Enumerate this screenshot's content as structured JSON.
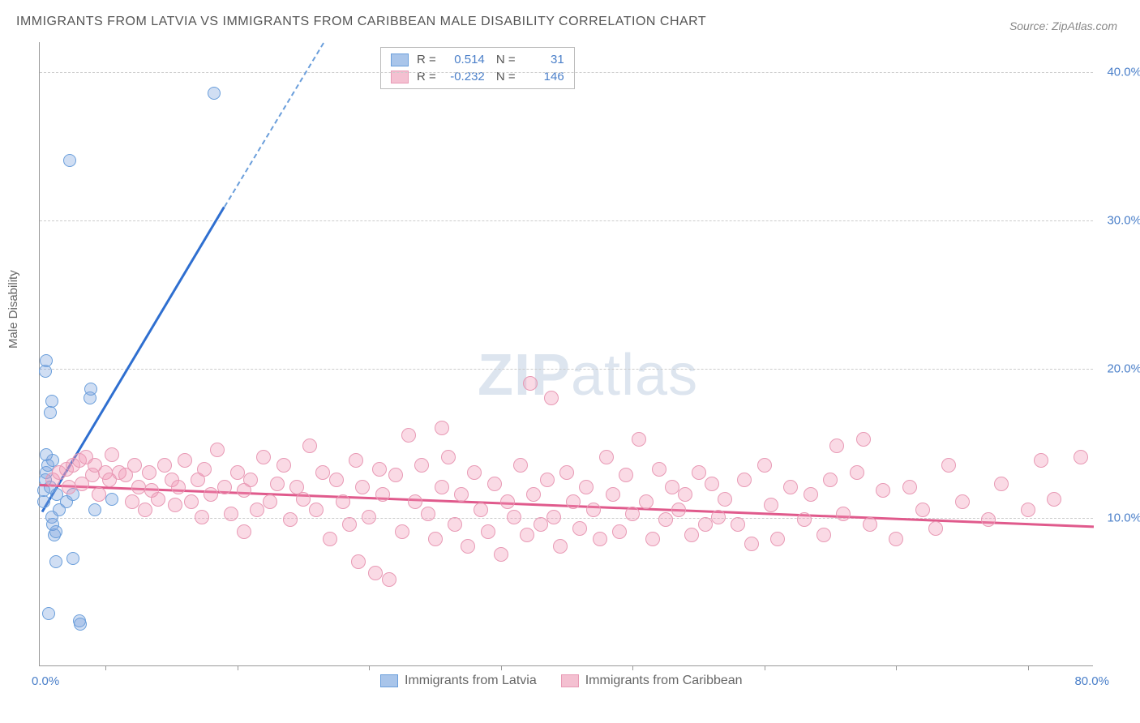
{
  "title": "IMMIGRANTS FROM LATVIA VS IMMIGRANTS FROM CARIBBEAN MALE DISABILITY CORRELATION CHART",
  "source": "Source: ZipAtlas.com",
  "ylabel": "Male Disability",
  "watermark_bold": "ZIP",
  "watermark_rest": "atlas",
  "chart": {
    "type": "scatter",
    "background_color": "#ffffff",
    "grid_color": "#cccccc",
    "border_color": "#999999",
    "xlim": [
      0,
      80
    ],
    "ylim": [
      0,
      42
    ],
    "y_ticks": [
      {
        "v": 10,
        "label": "10.0%"
      },
      {
        "v": 20,
        "label": "20.0%"
      },
      {
        "v": 30,
        "label": "30.0%"
      },
      {
        "v": 40,
        "label": "40.0%"
      }
    ],
    "x_tick_left": "0.0%",
    "x_tick_right": "80.0%",
    "x_tick_marks": [
      5,
      15,
      25,
      35,
      45,
      55,
      65,
      75
    ],
    "series": [
      {
        "name": "Immigrants from Latvia",
        "color_fill": "rgba(120,160,220,0.35)",
        "color_stroke": "#6a9edb",
        "swatch_fill": "#a9c5ea",
        "swatch_border": "#6a9edb",
        "marker_radius": 8,
        "R": "0.514",
        "N": "31",
        "trend": {
          "x1": 0.2,
          "y1": 10.5,
          "x2": 14,
          "y2": 31,
          "color": "#2f6fd0",
          "width": 3
        },
        "trend_dash": {
          "x1": 14,
          "y1": 31,
          "x2": 21.5,
          "y2": 42,
          "color": "#6a9edb"
        },
        "points": [
          {
            "x": 0.3,
            "y": 11
          },
          {
            "x": 0.3,
            "y": 11.8
          },
          {
            "x": 0.4,
            "y": 12.5
          },
          {
            "x": 0.5,
            "y": 13
          },
          {
            "x": 0.6,
            "y": 13.5
          },
          {
            "x": 0.8,
            "y": 12
          },
          {
            "x": 0.9,
            "y": 10
          },
          {
            "x": 1.0,
            "y": 9.5
          },
          {
            "x": 1.1,
            "y": 8.8
          },
          {
            "x": 1.2,
            "y": 9.0
          },
          {
            "x": 1.3,
            "y": 11.5
          },
          {
            "x": 1.0,
            "y": 13.8
          },
          {
            "x": 0.5,
            "y": 14.2
          },
          {
            "x": 1.5,
            "y": 10.5
          },
          {
            "x": 2.0,
            "y": 11
          },
          {
            "x": 2.5,
            "y": 11.5
          },
          {
            "x": 0.8,
            "y": 17
          },
          {
            "x": 0.9,
            "y": 17.8
          },
          {
            "x": 0.4,
            "y": 19.8
          },
          {
            "x": 0.5,
            "y": 20.5
          },
          {
            "x": 3.8,
            "y": 18
          },
          {
            "x": 3.9,
            "y": 18.6
          },
          {
            "x": 4.2,
            "y": 10.5
          },
          {
            "x": 5.5,
            "y": 11.2
          },
          {
            "x": 1.2,
            "y": 7.0
          },
          {
            "x": 2.5,
            "y": 7.2
          },
          {
            "x": 0.7,
            "y": 3.5
          },
          {
            "x": 3.0,
            "y": 3.0
          },
          {
            "x": 3.1,
            "y": 2.8
          },
          {
            "x": 2.3,
            "y": 34.0
          },
          {
            "x": 13.2,
            "y": 38.5
          }
        ]
      },
      {
        "name": "Immigrants from Caribbean",
        "color_fill": "rgba(240,150,180,0.35)",
        "color_stroke": "#e89ab5",
        "swatch_fill": "#f4c0d1",
        "swatch_border": "#e89ab5",
        "marker_radius": 9,
        "R": "-0.232",
        "N": "146",
        "trend": {
          "x1": 0,
          "y1": 12.3,
          "x2": 80,
          "y2": 9.5,
          "color": "#e05a8c",
          "width": 2.5
        },
        "points": [
          {
            "x": 1,
            "y": 12.5
          },
          {
            "x": 1.5,
            "y": 13
          },
          {
            "x": 2,
            "y": 13.2
          },
          {
            "x": 2.2,
            "y": 12
          },
          {
            "x": 2.5,
            "y": 13.5
          },
          {
            "x": 3,
            "y": 13.8
          },
          {
            "x": 3.2,
            "y": 12.2
          },
          {
            "x": 3.5,
            "y": 14
          },
          {
            "x": 4,
            "y": 12.8
          },
          {
            "x": 4.2,
            "y": 13.5
          },
          {
            "x": 4.5,
            "y": 11.5
          },
          {
            "x": 5,
            "y": 13
          },
          {
            "x": 5.3,
            "y": 12.5
          },
          {
            "x": 5.5,
            "y": 14.2
          },
          {
            "x": 6,
            "y": 13
          },
          {
            "x": 6.5,
            "y": 12.8
          },
          {
            "x": 7,
            "y": 11
          },
          {
            "x": 7.2,
            "y": 13.5
          },
          {
            "x": 7.5,
            "y": 12
          },
          {
            "x": 8,
            "y": 10.5
          },
          {
            "x": 8.3,
            "y": 13
          },
          {
            "x": 8.5,
            "y": 11.8
          },
          {
            "x": 9,
            "y": 11.2
          },
          {
            "x": 9.5,
            "y": 13.5
          },
          {
            "x": 10,
            "y": 12.5
          },
          {
            "x": 10.3,
            "y": 10.8
          },
          {
            "x": 10.5,
            "y": 12
          },
          {
            "x": 11,
            "y": 13.8
          },
          {
            "x": 11.5,
            "y": 11
          },
          {
            "x": 12,
            "y": 12.5
          },
          {
            "x": 12.3,
            "y": 10
          },
          {
            "x": 12.5,
            "y": 13.2
          },
          {
            "x": 13,
            "y": 11.5
          },
          {
            "x": 13.5,
            "y": 14.5
          },
          {
            "x": 14,
            "y": 12
          },
          {
            "x": 14.5,
            "y": 10.2
          },
          {
            "x": 15,
            "y": 13
          },
          {
            "x": 15.5,
            "y": 11.8
          },
          {
            "x": 16,
            "y": 12.5
          },
          {
            "x": 16.5,
            "y": 10.5
          },
          {
            "x": 17,
            "y": 14
          },
          {
            "x": 17.5,
            "y": 11
          },
          {
            "x": 18,
            "y": 12.2
          },
          {
            "x": 18.5,
            "y": 13.5
          },
          {
            "x": 19,
            "y": 9.8
          },
          {
            "x": 19.5,
            "y": 12
          },
          {
            "x": 20,
            "y": 11.2
          },
          {
            "x": 20.5,
            "y": 14.8
          },
          {
            "x": 21,
            "y": 10.5
          },
          {
            "x": 21.5,
            "y": 13
          },
          {
            "x": 22,
            "y": 8.5
          },
          {
            "x": 22.5,
            "y": 12.5
          },
          {
            "x": 23,
            "y": 11
          },
          {
            "x": 23.5,
            "y": 9.5
          },
          {
            "x": 24,
            "y": 13.8
          },
          {
            "x": 24.2,
            "y": 7
          },
          {
            "x": 24.5,
            "y": 12
          },
          {
            "x": 25,
            "y": 10
          },
          {
            "x": 25.5,
            "y": 6.2
          },
          {
            "x": 25.8,
            "y": 13.2
          },
          {
            "x": 26,
            "y": 11.5
          },
          {
            "x": 26.5,
            "y": 5.8
          },
          {
            "x": 27,
            "y": 12.8
          },
          {
            "x": 27.5,
            "y": 9
          },
          {
            "x": 28,
            "y": 15.5
          },
          {
            "x": 28.5,
            "y": 11
          },
          {
            "x": 29,
            "y": 13.5
          },
          {
            "x": 29.5,
            "y": 10.2
          },
          {
            "x": 30,
            "y": 8.5
          },
          {
            "x": 30.5,
            "y": 12
          },
          {
            "x": 31,
            "y": 14
          },
          {
            "x": 31.5,
            "y": 9.5
          },
          {
            "x": 32,
            "y": 11.5
          },
          {
            "x": 32.5,
            "y": 8
          },
          {
            "x": 33,
            "y": 13
          },
          {
            "x": 33.5,
            "y": 10.5
          },
          {
            "x": 34,
            "y": 9
          },
          {
            "x": 34.5,
            "y": 12.2
          },
          {
            "x": 35,
            "y": 7.5
          },
          {
            "x": 35.5,
            "y": 11
          },
          {
            "x": 36,
            "y": 10
          },
          {
            "x": 36.5,
            "y": 13.5
          },
          {
            "x": 37,
            "y": 8.8
          },
          {
            "x": 37.2,
            "y": 19
          },
          {
            "x": 37.5,
            "y": 11.5
          },
          {
            "x": 38,
            "y": 9.5
          },
          {
            "x": 38.5,
            "y": 12.5
          },
          {
            "x": 38.8,
            "y": 18
          },
          {
            "x": 39,
            "y": 10
          },
          {
            "x": 39.5,
            "y": 8
          },
          {
            "x": 40,
            "y": 13
          },
          {
            "x": 40.5,
            "y": 11
          },
          {
            "x": 41,
            "y": 9.2
          },
          {
            "x": 41.5,
            "y": 12
          },
          {
            "x": 42,
            "y": 10.5
          },
          {
            "x": 42.5,
            "y": 8.5
          },
          {
            "x": 43,
            "y": 14
          },
          {
            "x": 43.5,
            "y": 11.5
          },
          {
            "x": 44,
            "y": 9
          },
          {
            "x": 44.5,
            "y": 12.8
          },
          {
            "x": 45,
            "y": 10.2
          },
          {
            "x": 45.5,
            "y": 15.2
          },
          {
            "x": 46,
            "y": 11
          },
          {
            "x": 46.5,
            "y": 8.5
          },
          {
            "x": 47,
            "y": 13.2
          },
          {
            "x": 47.5,
            "y": 9.8
          },
          {
            "x": 48,
            "y": 12
          },
          {
            "x": 48.5,
            "y": 10.5
          },
          {
            "x": 49,
            "y": 11.5
          },
          {
            "x": 49.5,
            "y": 8.8
          },
          {
            "x": 50,
            "y": 13
          },
          {
            "x": 50.5,
            "y": 9.5
          },
          {
            "x": 51,
            "y": 12.2
          },
          {
            "x": 51.5,
            "y": 10
          },
          {
            "x": 52,
            "y": 11.2
          },
          {
            "x": 53,
            "y": 9.5
          },
          {
            "x": 53.5,
            "y": 12.5
          },
          {
            "x": 54,
            "y": 8.2
          },
          {
            "x": 55,
            "y": 13.5
          },
          {
            "x": 55.5,
            "y": 10.8
          },
          {
            "x": 56,
            "y": 8.5
          },
          {
            "x": 57,
            "y": 12
          },
          {
            "x": 58,
            "y": 9.8
          },
          {
            "x": 58.5,
            "y": 11.5
          },
          {
            "x": 59.5,
            "y": 8.8
          },
          {
            "x": 60,
            "y": 12.5
          },
          {
            "x": 61,
            "y": 10.2
          },
          {
            "x": 62,
            "y": 13
          },
          {
            "x": 63,
            "y": 9.5
          },
          {
            "x": 64,
            "y": 11.8
          },
          {
            "x": 65,
            "y": 8.5
          },
          {
            "x": 66,
            "y": 12
          },
          {
            "x": 67,
            "y": 10.5
          },
          {
            "x": 68,
            "y": 9.2
          },
          {
            "x": 69,
            "y": 13.5
          },
          {
            "x": 70,
            "y": 11
          },
          {
            "x": 72,
            "y": 9.8
          },
          {
            "x": 73,
            "y": 12.2
          },
          {
            "x": 75,
            "y": 10.5
          },
          {
            "x": 76,
            "y": 13.8
          },
          {
            "x": 77,
            "y": 11.2
          },
          {
            "x": 79,
            "y": 14
          },
          {
            "x": 60.5,
            "y": 14.8
          },
          {
            "x": 62.5,
            "y": 15.2
          },
          {
            "x": 30.5,
            "y": 16
          },
          {
            "x": 15.5,
            "y": 9
          }
        ]
      }
    ]
  }
}
